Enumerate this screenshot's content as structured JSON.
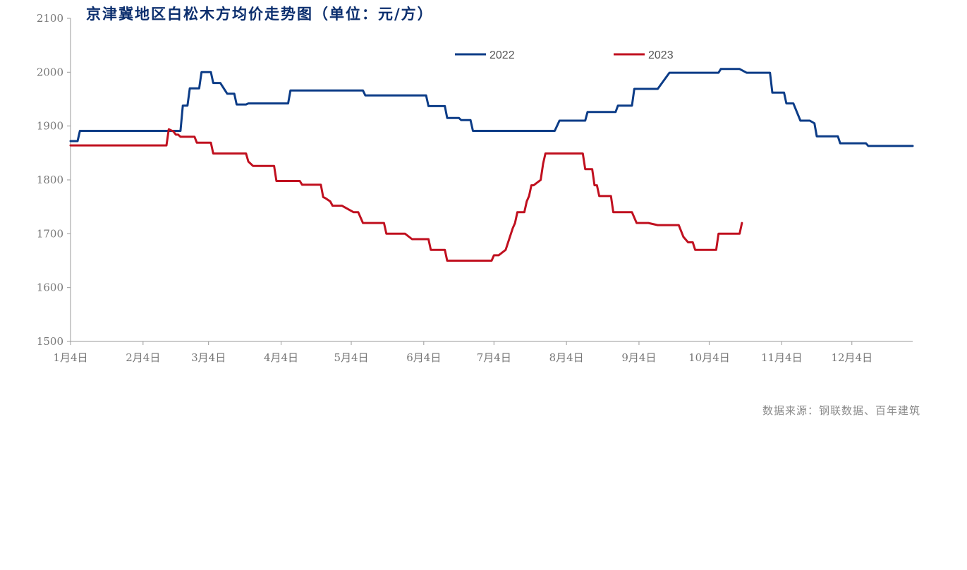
{
  "chart_data": {
    "type": "line",
    "title": "京津冀地区白松木方均价走势图（单位：元/方）",
    "source": "数据来源：钢联数据、百年建筑",
    "x_axis": {
      "tick_labels": [
        "1月4日",
        "2月4日",
        "3月4日",
        "4月4日",
        "5月4日",
        "6月4日",
        "7月4日",
        "8月4日",
        "9月4日",
        "10月4日",
        "11月4日",
        "12月4日"
      ],
      "tick_dates": [
        "01-04",
        "02-04",
        "03-04",
        "04-04",
        "05-04",
        "06-04",
        "07-04",
        "08-04",
        "09-04",
        "10-04",
        "11-04",
        "12-04"
      ],
      "range": [
        "01-04",
        "12-30"
      ]
    },
    "y_axis": {
      "ylim": [
        1500,
        2100
      ],
      "ticks": [
        "1500",
        "1600",
        "1700",
        "1800",
        "1900",
        "2000",
        "2100"
      ],
      "grid": false
    },
    "legend": {
      "position": "top-center"
    },
    "series": [
      {
        "name": "2022",
        "color": "#0c3c87",
        "points": [
          [
            "01-04",
            1872
          ],
          [
            "01-07",
            1872
          ],
          [
            "01-08",
            1891
          ],
          [
            "02-20",
            1891
          ],
          [
            "02-21",
            1938
          ],
          [
            "02-23",
            1938
          ],
          [
            "02-24",
            1970
          ],
          [
            "02-28",
            1970
          ],
          [
            "03-01",
            2000
          ],
          [
            "03-05",
            2000
          ],
          [
            "03-06",
            1980
          ],
          [
            "03-09",
            1980
          ],
          [
            "03-12",
            1960
          ],
          [
            "03-15",
            1960
          ],
          [
            "03-16",
            1940
          ],
          [
            "03-20",
            1940
          ],
          [
            "03-21",
            1942
          ],
          [
            "04-07",
            1942
          ],
          [
            "04-08",
            1966
          ],
          [
            "05-09",
            1966
          ],
          [
            "05-10",
            1957
          ],
          [
            "06-05",
            1957
          ],
          [
            "06-06",
            1937
          ],
          [
            "06-13",
            1937
          ],
          [
            "06-14",
            1915
          ],
          [
            "06-19",
            1915
          ],
          [
            "06-20",
            1911
          ],
          [
            "06-24",
            1911
          ],
          [
            "06-25",
            1891
          ],
          [
            "07-30",
            1891
          ],
          [
            "08-01",
            1910
          ],
          [
            "08-12",
            1910
          ],
          [
            "08-13",
            1926
          ],
          [
            "08-25",
            1926
          ],
          [
            "08-26",
            1938
          ],
          [
            "09-01",
            1938
          ],
          [
            "09-02",
            1969
          ],
          [
            "09-12",
            1969
          ],
          [
            "09-17",
            1999
          ],
          [
            "10-08",
            1999
          ],
          [
            "10-09",
            2006
          ],
          [
            "10-17",
            2006
          ],
          [
            "10-20",
            1999
          ],
          [
            "10-30",
            1999
          ],
          [
            "10-31",
            1962
          ],
          [
            "11-05",
            1962
          ],
          [
            "11-06",
            1942
          ],
          [
            "11-09",
            1942
          ],
          [
            "11-12",
            1910
          ],
          [
            "11-16",
            1910
          ],
          [
            "11-18",
            1905
          ],
          [
            "11-19",
            1881
          ],
          [
            "11-28",
            1881
          ],
          [
            "11-29",
            1868
          ],
          [
            "12-10",
            1868
          ],
          [
            "12-11",
            1863
          ],
          [
            "12-30",
            1863
          ]
        ]
      },
      {
        "name": "2023",
        "color": "#c0101f",
        "points": [
          [
            "01-04",
            1864
          ],
          [
            "02-14",
            1864
          ],
          [
            "02-15",
            1894
          ],
          [
            "02-17",
            1890
          ],
          [
            "02-18",
            1884
          ],
          [
            "02-19",
            1884
          ],
          [
            "02-20",
            1880
          ],
          [
            "02-26",
            1880
          ],
          [
            "02-27",
            1869
          ],
          [
            "03-05",
            1869
          ],
          [
            "03-06",
            1849
          ],
          [
            "03-20",
            1849
          ],
          [
            "03-21",
            1834
          ],
          [
            "03-23",
            1826
          ],
          [
            "04-01",
            1826
          ],
          [
            "04-02",
            1798
          ],
          [
            "04-12",
            1798
          ],
          [
            "04-13",
            1791
          ],
          [
            "04-21",
            1791
          ],
          [
            "04-22",
            1768
          ],
          [
            "04-23",
            1766
          ],
          [
            "04-25",
            1760
          ],
          [
            "04-26",
            1752
          ],
          [
            "04-30",
            1752
          ],
          [
            "05-05",
            1740
          ],
          [
            "05-07",
            1740
          ],
          [
            "05-09",
            1720
          ],
          [
            "05-18",
            1720
          ],
          [
            "05-19",
            1700
          ],
          [
            "05-27",
            1700
          ],
          [
            "05-30",
            1690
          ],
          [
            "06-06",
            1690
          ],
          [
            "06-07",
            1670
          ],
          [
            "06-13",
            1670
          ],
          [
            "06-14",
            1650
          ],
          [
            "07-03",
            1650
          ],
          [
            "07-04",
            1660
          ],
          [
            "07-06",
            1660
          ],
          [
            "07-09",
            1670
          ],
          [
            "07-12",
            1710
          ],
          [
            "07-13",
            1720
          ],
          [
            "07-14",
            1740
          ],
          [
            "07-17",
            1740
          ],
          [
            "07-18",
            1760
          ],
          [
            "07-19",
            1770
          ],
          [
            "07-20",
            1790
          ],
          [
            "07-21",
            1790
          ],
          [
            "07-24",
            1800
          ],
          [
            "07-25",
            1830
          ],
          [
            "07-26",
            1849
          ],
          [
            "08-11",
            1849
          ],
          [
            "08-12",
            1820
          ],
          [
            "08-15",
            1820
          ],
          [
            "08-16",
            1790
          ],
          [
            "08-17",
            1790
          ],
          [
            "08-18",
            1770
          ],
          [
            "08-23",
            1770
          ],
          [
            "08-24",
            1740
          ],
          [
            "09-01",
            1740
          ],
          [
            "09-03",
            1720
          ],
          [
            "09-08",
            1720
          ],
          [
            "09-12",
            1716
          ],
          [
            "09-21",
            1716
          ],
          [
            "09-23",
            1694
          ],
          [
            "09-25",
            1684
          ],
          [
            "09-27",
            1684
          ],
          [
            "09-28",
            1670
          ],
          [
            "10-07",
            1670
          ],
          [
            "10-08",
            1700
          ],
          [
            "10-17",
            1700
          ],
          [
            "10-18",
            1720
          ]
        ]
      }
    ]
  }
}
